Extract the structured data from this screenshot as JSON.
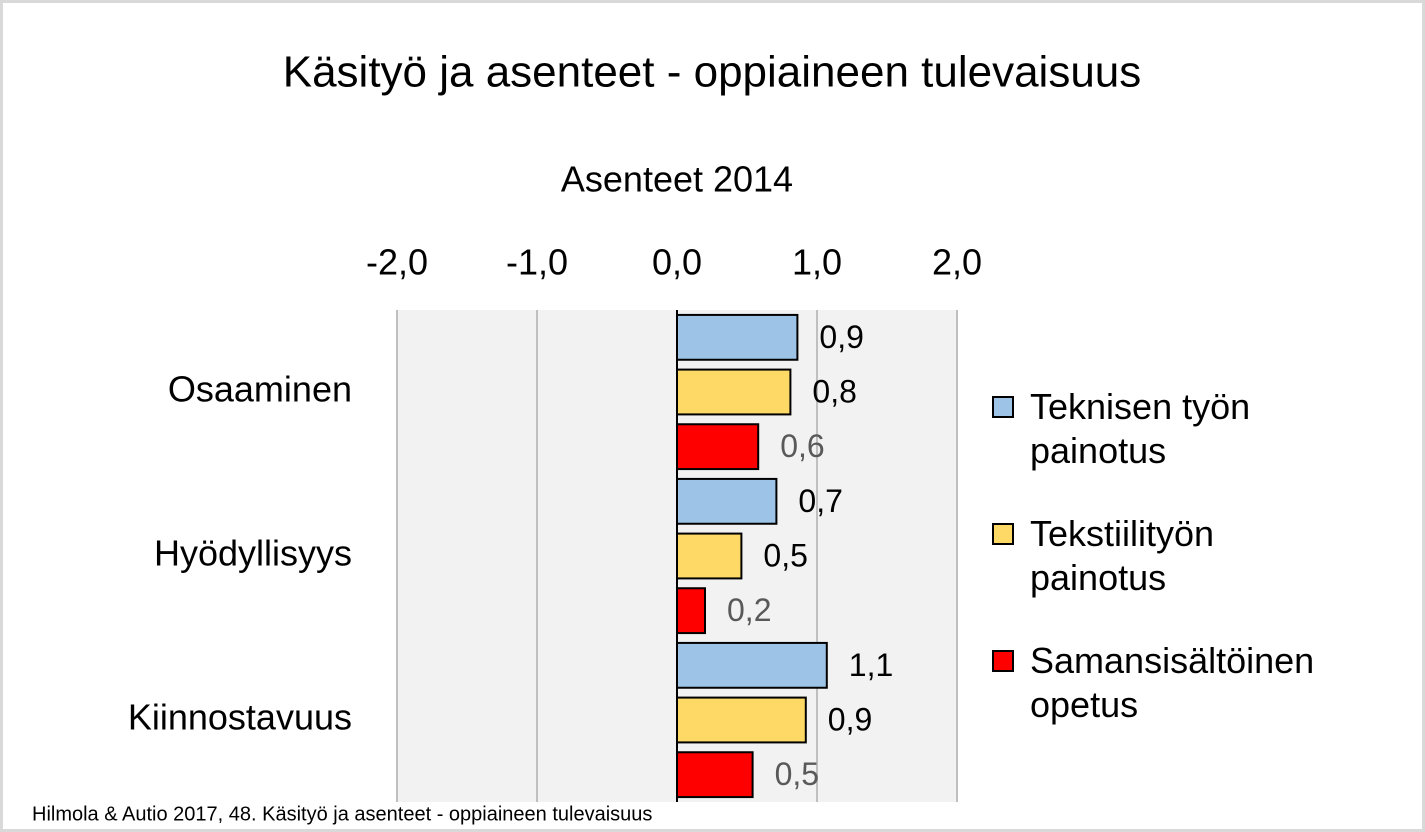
{
  "chart_data": {
    "type": "bar",
    "orientation": "horizontal",
    "title": "Käsityö ja asenteet - oppiaineen tulevaisuus",
    "subtitle": "Asenteet 2014",
    "categories": [
      "Osaaminen",
      "Hyödyllisyys",
      "Kiinnostavuus"
    ],
    "series": [
      {
        "name": "Teknisen työn painotus",
        "color": "#9dc3e6",
        "label_color": "#000000",
        "values": [
          0.86,
          0.71,
          1.07
        ],
        "value_labels": [
          "0,9",
          "0,7",
          "1,1"
        ]
      },
      {
        "name": "Tekstiilityön painotus",
        "color": "#ffd966",
        "label_color": "#000000",
        "values": [
          0.81,
          0.46,
          0.92
        ],
        "value_labels": [
          "0,8",
          "0,5",
          "0,9"
        ]
      },
      {
        "name": "Samansisältöinen opetus",
        "color": "#ff0000",
        "label_color": "#595959",
        "values": [
          0.58,
          0.2,
          0.54
        ],
        "value_labels": [
          "0,6",
          "0,2",
          "0,5"
        ]
      }
    ],
    "xlim": [
      -2,
      2
    ],
    "xticks": [
      {
        "value": -2,
        "label": "-2,0"
      },
      {
        "value": -1,
        "label": "-1,0"
      },
      {
        "value": 0,
        "label": "0,0"
      },
      {
        "value": 1,
        "label": "1,0"
      },
      {
        "value": 2,
        "label": "2,0"
      }
    ],
    "grid": true,
    "legend": "right",
    "source": "Hilmola & Autio 2017, 48. Käsityö ja asenteet - oppiaineen tulevaisuus"
  }
}
